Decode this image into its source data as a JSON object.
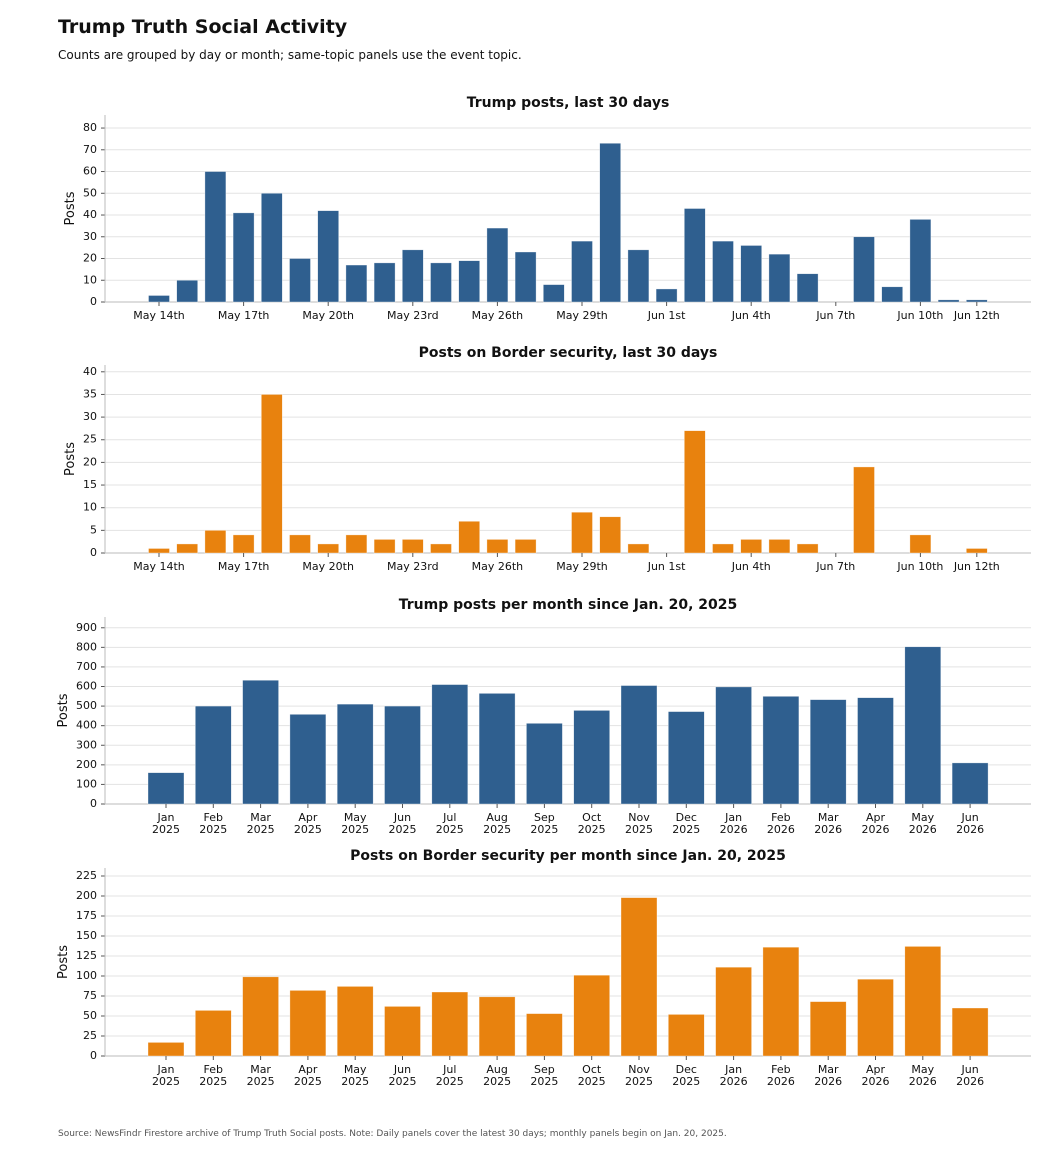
{
  "title": "Trump Truth Social Activity",
  "subtitle": "Counts are grouped by day or month; same-topic panels use the event topic.",
  "source": "Source: NewsFindr Firestore archive of Trump Truth Social posts. Note: Daily panels cover the latest 30 days; monthly panels begin on Jan. 20, 2025.",
  "chart_data": [
    {
      "type": "bar",
      "title": "Trump posts, last 30 days",
      "ylabel": "Posts",
      "color": "#2f5f8f",
      "grid": true,
      "categories": [
        "May 14th",
        null,
        null,
        "May 17th",
        null,
        null,
        "May 20th",
        null,
        null,
        "May 23rd",
        null,
        null,
        "May 26th",
        null,
        null,
        "May 29th",
        null,
        null,
        "Jun 1st",
        null,
        null,
        "Jun 4th",
        null,
        null,
        "Jun 7th",
        null,
        null,
        "Jun 10th",
        null,
        "Jun 12th"
      ],
      "values": [
        3,
        10,
        60,
        41,
        50,
        20,
        42,
        17,
        18,
        24,
        18,
        19,
        34,
        23,
        8,
        28,
        73,
        24,
        6,
        43,
        28,
        26,
        22,
        13,
        0,
        30,
        7,
        38,
        1,
        1
      ],
      "ylim": [
        0,
        86
      ],
      "yticks": [
        0,
        10,
        20,
        30,
        40,
        50,
        60,
        70,
        80
      ]
    },
    {
      "type": "bar",
      "title": "Posts on Border security, last 30 days",
      "ylabel": "Posts",
      "color": "#e8820e",
      "grid": true,
      "categories": [
        "May 14th",
        null,
        null,
        "May 17th",
        null,
        null,
        "May 20th",
        null,
        null,
        "May 23rd",
        null,
        null,
        "May 26th",
        null,
        null,
        "May 29th",
        null,
        null,
        "Jun 1st",
        null,
        null,
        "Jun 4th",
        null,
        null,
        "Jun 7th",
        null,
        null,
        "Jun 10th",
        null,
        "Jun 12th"
      ],
      "values": [
        1,
        2,
        5,
        4,
        35,
        4,
        2,
        4,
        3,
        3,
        2,
        7,
        3,
        3,
        0,
        9,
        8,
        2,
        0,
        27,
        2,
        3,
        3,
        2,
        0,
        19,
        0,
        4,
        0,
        1
      ],
      "ylim": [
        0,
        41.5
      ],
      "yticks": [
        0,
        5,
        10,
        15,
        20,
        25,
        30,
        35,
        40
      ]
    },
    {
      "type": "bar",
      "title": "Trump posts per month since Jan. 20, 2025",
      "ylabel": "Posts",
      "color": "#2f5f8f",
      "grid": true,
      "categories": [
        "Jan\n2025",
        "Feb\n2025",
        "Mar\n2025",
        "Apr\n2025",
        "May\n2025",
        "Jun\n2025",
        "Jul\n2025",
        "Aug\n2025",
        "Sep\n2025",
        "Oct\n2025",
        "Nov\n2025",
        "Dec\n2025",
        "Jan\n2026",
        "Feb\n2026",
        "Mar\n2026",
        "Apr\n2026",
        "May\n2026",
        "Jun\n2026"
      ],
      "values": [
        160,
        500,
        632,
        458,
        510,
        500,
        610,
        565,
        412,
        478,
        605,
        472,
        598,
        550,
        533,
        543,
        803,
        210
      ],
      "ylim": [
        0,
        955
      ],
      "yticks": [
        0,
        100,
        200,
        300,
        400,
        500,
        600,
        700,
        800,
        900
      ]
    },
    {
      "type": "bar",
      "title": "Posts on Border security per month since Jan. 20, 2025",
      "ylabel": "Posts",
      "color": "#e8820e",
      "grid": true,
      "categories": [
        "Jan\n2025",
        "Feb\n2025",
        "Mar\n2025",
        "Apr\n2025",
        "May\n2025",
        "Jun\n2025",
        "Jul\n2025",
        "Aug\n2025",
        "Sep\n2025",
        "Oct\n2025",
        "Nov\n2025",
        "Dec\n2025",
        "Jan\n2026",
        "Feb\n2026",
        "Mar\n2026",
        "Apr\n2026",
        "May\n2026",
        "Jun\n2026"
      ],
      "values": [
        17,
        57,
        99,
        82,
        87,
        62,
        80,
        74,
        53,
        101,
        198,
        52,
        111,
        136,
        68,
        96,
        137,
        60
      ],
      "ylim": [
        0,
        235
      ],
      "yticks": [
        0,
        25,
        50,
        75,
        100,
        125,
        150,
        175,
        200,
        225
      ]
    }
  ]
}
